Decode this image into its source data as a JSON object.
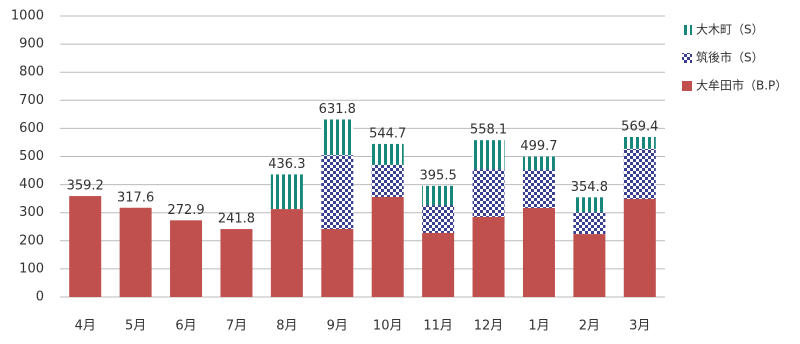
{
  "chart_data": {
    "type": "stacked-bar",
    "categories": [
      "4月",
      "5月",
      "6月",
      "7月",
      "8月",
      "9月",
      "10月",
      "11月",
      "12月",
      "1月",
      "2月",
      "3月"
    ],
    "series": [
      {
        "name": "大牟田市（B.P）",
        "color": "#c0504d",
        "pattern": "solid",
        "values": [
          359.2,
          317.6,
          272.9,
          241.8,
          313,
          242,
          356,
          228,
          285,
          317,
          224,
          349
        ]
      },
      {
        "name": "筑後市（S）",
        "color": "#3b3f8f",
        "pattern": "checker",
        "values": [
          0,
          0,
          0,
          0,
          0,
          263,
          114,
          99,
          170,
          135,
          78,
          178
        ]
      },
      {
        "name": "大木町（S）",
        "color": "#16877a",
        "pattern": "stripes",
        "values": [
          0,
          0,
          0,
          0,
          123.3,
          126.8,
          74.7,
          68.5,
          103.1,
          47.7,
          52.8,
          42.4
        ]
      }
    ],
    "totals": [
      359.2,
      317.6,
      272.9,
      241.8,
      436.3,
      631.8,
      544.7,
      395.5,
      558.1,
      499.7,
      354.8,
      569.4
    ],
    "ylim": [
      0,
      1000
    ],
    "yticks": [
      0,
      100,
      200,
      300,
      400,
      500,
      600,
      700,
      800,
      900,
      1000
    ],
    "grid": true
  }
}
